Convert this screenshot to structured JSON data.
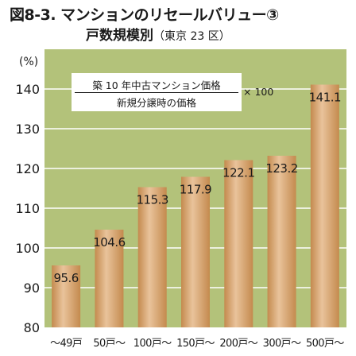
{
  "figure": {
    "title": "図8-3. マンションのリセールバリュー③",
    "subtitle": "戸数規模別",
    "subtitle_note": "（東京 23 区）"
  },
  "formula": {
    "numerator": "築 10 年中古マンション価格",
    "denominator": "新規分譲時の価格",
    "multiplier": "× 100"
  },
  "colors": {
    "plot_background": "#b3c27a",
    "gridline": "#ffffff",
    "bar_light": "#e9c39b",
    "bar_dark": "#c48a4e",
    "formula_box": "#ffffff"
  },
  "chart_data": {
    "type": "bar",
    "unit_label": "(%)",
    "categories": [
      "～49戸",
      "50戸～",
      "100戸～",
      "150戸～",
      "200戸～",
      "300戸～",
      "500戸～"
    ],
    "values": [
      95.6,
      104.6,
      115.3,
      117.9,
      122.1,
      123.2,
      141.1
    ],
    "ylim": [
      80,
      150
    ],
    "yticks": [
      80,
      90,
      100,
      110,
      120,
      130,
      140
    ],
    "grid": true,
    "data_labels": true
  }
}
